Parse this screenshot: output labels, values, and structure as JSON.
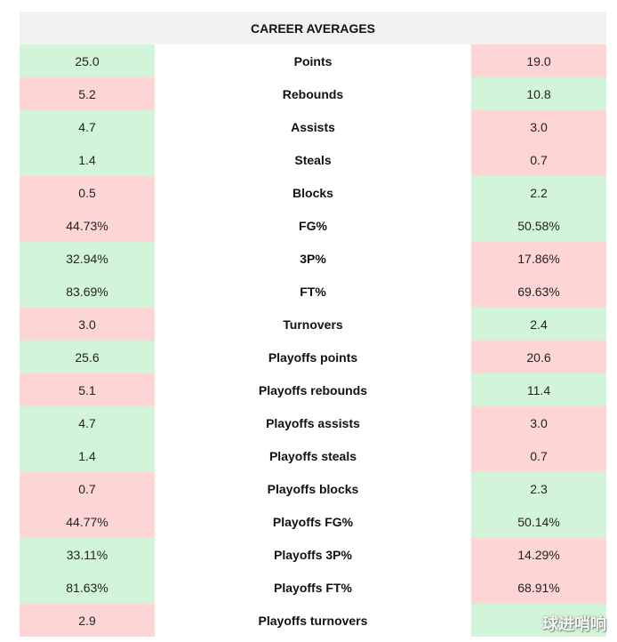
{
  "header": {
    "title": "CAREER AVERAGES"
  },
  "colors": {
    "better": "#d2f5d9",
    "worse": "#fdd5d5",
    "header_bg": "#f2f2f2"
  },
  "rows": [
    {
      "label": "Points",
      "left": "25.0",
      "right": "19.0",
      "left_status": "better",
      "right_status": "worse"
    },
    {
      "label": "Rebounds",
      "left": "5.2",
      "right": "10.8",
      "left_status": "worse",
      "right_status": "better"
    },
    {
      "label": "Assists",
      "left": "4.7",
      "right": "3.0",
      "left_status": "better",
      "right_status": "worse"
    },
    {
      "label": "Steals",
      "left": "1.4",
      "right": "0.7",
      "left_status": "better",
      "right_status": "worse"
    },
    {
      "label": "Blocks",
      "left": "0.5",
      "right": "2.2",
      "left_status": "worse",
      "right_status": "better"
    },
    {
      "label": "FG%",
      "left": "44.73%",
      "right": "50.58%",
      "left_status": "worse",
      "right_status": "better"
    },
    {
      "label": "3P%",
      "left": "32.94%",
      "right": "17.86%",
      "left_status": "better",
      "right_status": "worse"
    },
    {
      "label": "FT%",
      "left": "83.69%",
      "right": "69.63%",
      "left_status": "better",
      "right_status": "worse"
    },
    {
      "label": "Turnovers",
      "left": "3.0",
      "right": "2.4",
      "left_status": "worse",
      "right_status": "better"
    },
    {
      "label": "Playoffs points",
      "left": "25.6",
      "right": "20.6",
      "left_status": "better",
      "right_status": "worse"
    },
    {
      "label": "Playoffs rebounds",
      "left": "5.1",
      "right": "11.4",
      "left_status": "worse",
      "right_status": "better"
    },
    {
      "label": "Playoffs assists",
      "left": "4.7",
      "right": "3.0",
      "left_status": "better",
      "right_status": "worse"
    },
    {
      "label": "Playoffs steals",
      "left": "1.4",
      "right": "0.7",
      "left_status": "better",
      "right_status": "worse"
    },
    {
      "label": "Playoffs blocks",
      "left": "0.7",
      "right": "2.3",
      "left_status": "worse",
      "right_status": "better"
    },
    {
      "label": "Playoffs FG%",
      "left": "44.77%",
      "right": "50.14%",
      "left_status": "worse",
      "right_status": "better"
    },
    {
      "label": "Playoffs 3P%",
      "left": "33.11%",
      "right": "14.29%",
      "left_status": "better",
      "right_status": "worse"
    },
    {
      "label": "Playoffs FT%",
      "left": "81.63%",
      "right": "68.91%",
      "left_status": "better",
      "right_status": "worse"
    },
    {
      "label": "Playoffs turnovers",
      "left": "2.9",
      "right": "",
      "left_status": "worse",
      "right_status": "better"
    }
  ],
  "watermark": {
    "text": "球进哨响"
  }
}
